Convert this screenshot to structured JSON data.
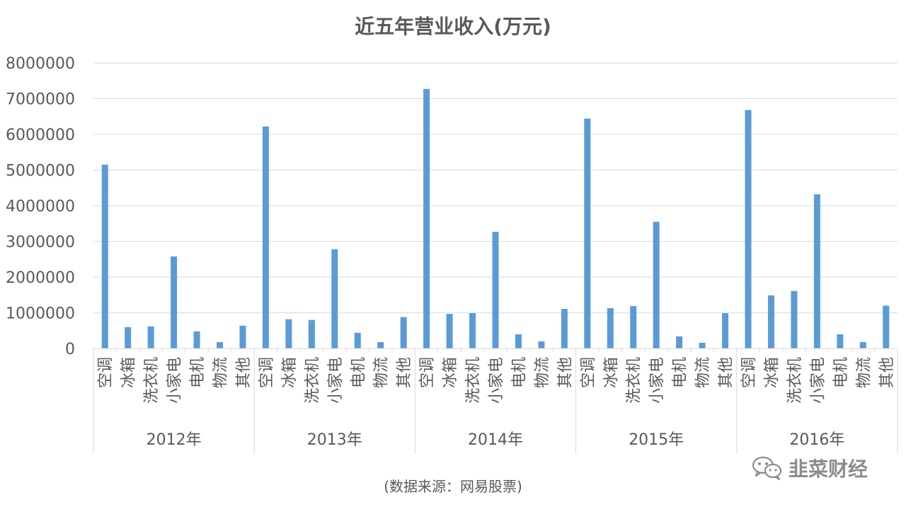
{
  "chart_data": {
    "type": "bar",
    "title": "近五年营业收入(万元)",
    "xlabel": "",
    "ylabel": "",
    "ylim": [
      0,
      8000000
    ],
    "yticks": [
      "0",
      "1000000",
      "2000000",
      "3000000",
      "4000000",
      "5000000",
      "6000000",
      "7000000",
      "8000000"
    ],
    "grid": true,
    "legend": "none",
    "bar_color": "#5b9bd5",
    "groups": [
      {
        "label": "2012年",
        "categories": [
          "空调",
          "冰箱",
          "洗衣机",
          "小家电",
          "电机",
          "物流",
          "其他"
        ],
        "values": [
          5150000,
          600000,
          620000,
          2580000,
          480000,
          180000,
          640000
        ]
      },
      {
        "label": "2013年",
        "categories": [
          "空调",
          "冰箱",
          "洗衣机",
          "小家电",
          "电机",
          "物流",
          "其他"
        ],
        "values": [
          6220000,
          820000,
          800000,
          2780000,
          440000,
          180000,
          880000
        ]
      },
      {
        "label": "2014年",
        "categories": [
          "空调",
          "冰箱",
          "洗衣机",
          "小家电",
          "电机",
          "物流",
          "其他"
        ],
        "values": [
          7270000,
          970000,
          990000,
          3270000,
          400000,
          200000,
          1110000
        ]
      },
      {
        "label": "2015年",
        "categories": [
          "空调",
          "冰箱",
          "洗衣机",
          "小家电",
          "电机",
          "物流",
          "其他"
        ],
        "values": [
          6440000,
          1130000,
          1190000,
          3550000,
          340000,
          160000,
          990000
        ]
      },
      {
        "label": "2016年",
        "categories": [
          "空调",
          "冰箱",
          "洗衣机",
          "小家电",
          "电机",
          "物流",
          "其他"
        ],
        "values": [
          6680000,
          1490000,
          1610000,
          4320000,
          400000,
          180000,
          1200000
        ]
      }
    ]
  },
  "source": "(数据来源：网易股票)",
  "watermark": {
    "text": "韭菜财经",
    "icon": "wechat-icon"
  }
}
